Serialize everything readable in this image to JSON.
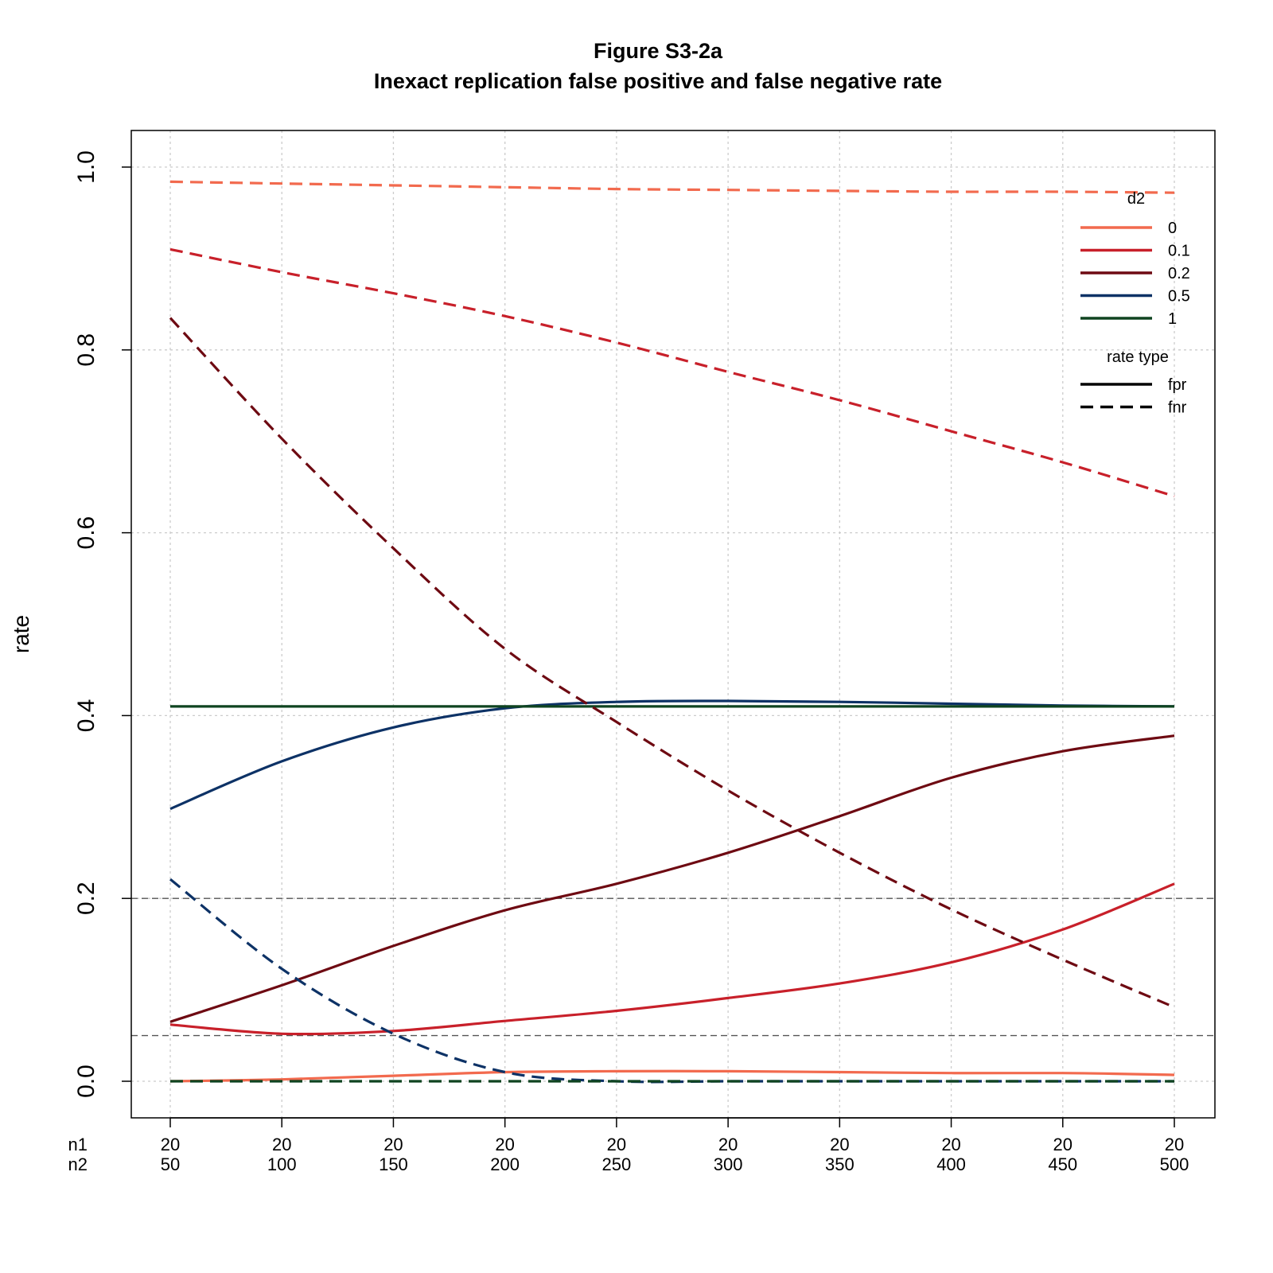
{
  "chart_data": {
    "type": "line",
    "title": "Figure S3-2a",
    "subtitle": "Inexact replication false positive and false negative rate",
    "ylabel": "rate",
    "ylim": [
      -0.04,
      1.04
    ],
    "yticks": [
      "0.0",
      "0.2",
      "0.4",
      "0.6",
      "0.8",
      "1.0"
    ],
    "grid": true,
    "x_row_labels": [
      "n1",
      "n2"
    ],
    "x": [
      50,
      100,
      150,
      200,
      250,
      300,
      350,
      400,
      450,
      500
    ],
    "x_ticks": [
      {
        "n1": "20",
        "n2": "50"
      },
      {
        "n1": "20",
        "n2": "100"
      },
      {
        "n1": "20",
        "n2": "150"
      },
      {
        "n1": "20",
        "n2": "200"
      },
      {
        "n1": "20",
        "n2": "250"
      },
      {
        "n1": "20",
        "n2": "300"
      },
      {
        "n1": "20",
        "n2": "350"
      },
      {
        "n1": "20",
        "n2": "400"
      },
      {
        "n1": "20",
        "n2": "450"
      },
      {
        "n1": "20",
        "n2": "500"
      }
    ],
    "reference_lines": [
      {
        "y": 0.2,
        "style": "dashed"
      },
      {
        "y": 0.05,
        "style": "dashed"
      }
    ],
    "legend": {
      "placement": "top-right",
      "d2_title": "d2",
      "d2_entries": [
        {
          "label": "0",
          "color": "#F26A4E"
        },
        {
          "label": "0.1",
          "color": "#C8202A"
        },
        {
          "label": "0.2",
          "color": "#6E0A12"
        },
        {
          "label": "0.5",
          "color": "#0D3266"
        },
        {
          "label": "1",
          "color": "#0F4420"
        }
      ],
      "type_title": "rate type",
      "type_entries": [
        {
          "label": "fpr",
          "style": "solid"
        },
        {
          "label": "fnr",
          "style": "dashed"
        }
      ]
    },
    "series": [
      {
        "d2": "0",
        "rate": "fpr",
        "color": "#F26A4E",
        "dashed": false,
        "values": [
          0.0,
          0.002,
          0.006,
          0.01,
          0.011,
          0.011,
          0.01,
          0.009,
          0.009,
          0.007
        ]
      },
      {
        "d2": "0.1",
        "rate": "fpr",
        "color": "#C8202A",
        "dashed": false,
        "values": [
          0.062,
          0.052,
          0.055,
          0.066,
          0.077,
          0.091,
          0.107,
          0.13,
          0.166,
          0.216
        ]
      },
      {
        "d2": "0.2",
        "rate": "fpr",
        "color": "#6E0A12",
        "dashed": false,
        "values": [
          0.065,
          0.105,
          0.148,
          0.187,
          0.216,
          0.25,
          0.29,
          0.332,
          0.361,
          0.378
        ]
      },
      {
        "d2": "0.5",
        "rate": "fpr",
        "color": "#0D3266",
        "dashed": false,
        "values": [
          0.298,
          0.35,
          0.387,
          0.408,
          0.415,
          0.416,
          0.415,
          0.413,
          0.411,
          0.41
        ]
      },
      {
        "d2": "1",
        "rate": "fpr",
        "color": "#0F4420",
        "dashed": false,
        "values": [
          0.41,
          0.41,
          0.41,
          0.41,
          0.41,
          0.41,
          0.41,
          0.41,
          0.41,
          0.41
        ]
      },
      {
        "d2": "0",
        "rate": "fnr",
        "color": "#F26A4E",
        "dashed": true,
        "values": [
          0.984,
          0.982,
          0.98,
          0.978,
          0.976,
          0.975,
          0.974,
          0.973,
          0.973,
          0.972
        ]
      },
      {
        "d2": "0.1",
        "rate": "fnr",
        "color": "#C8202A",
        "dashed": true,
        "values": [
          0.91,
          0.885,
          0.862,
          0.837,
          0.808,
          0.776,
          0.745,
          0.711,
          0.677,
          0.64
        ]
      },
      {
        "d2": "0.2",
        "rate": "fnr",
        "color": "#6E0A12",
        "dashed": true,
        "values": [
          0.835,
          0.703,
          0.583,
          0.473,
          0.393,
          0.318,
          0.25,
          0.188,
          0.133,
          0.081
        ]
      },
      {
        "d2": "0.5",
        "rate": "fnr",
        "color": "#0D3266",
        "dashed": true,
        "values": [
          0.221,
          0.123,
          0.052,
          0.01,
          0.0,
          0.0,
          0.0,
          0.0,
          0.0,
          0.0
        ]
      },
      {
        "d2": "1",
        "rate": "fnr",
        "color": "#0F4420",
        "dashed": true,
        "values": [
          0.0,
          0.0,
          0.0,
          0.0,
          0.0,
          0.0,
          0.0,
          0.0,
          0.0,
          0.0
        ]
      }
    ]
  }
}
